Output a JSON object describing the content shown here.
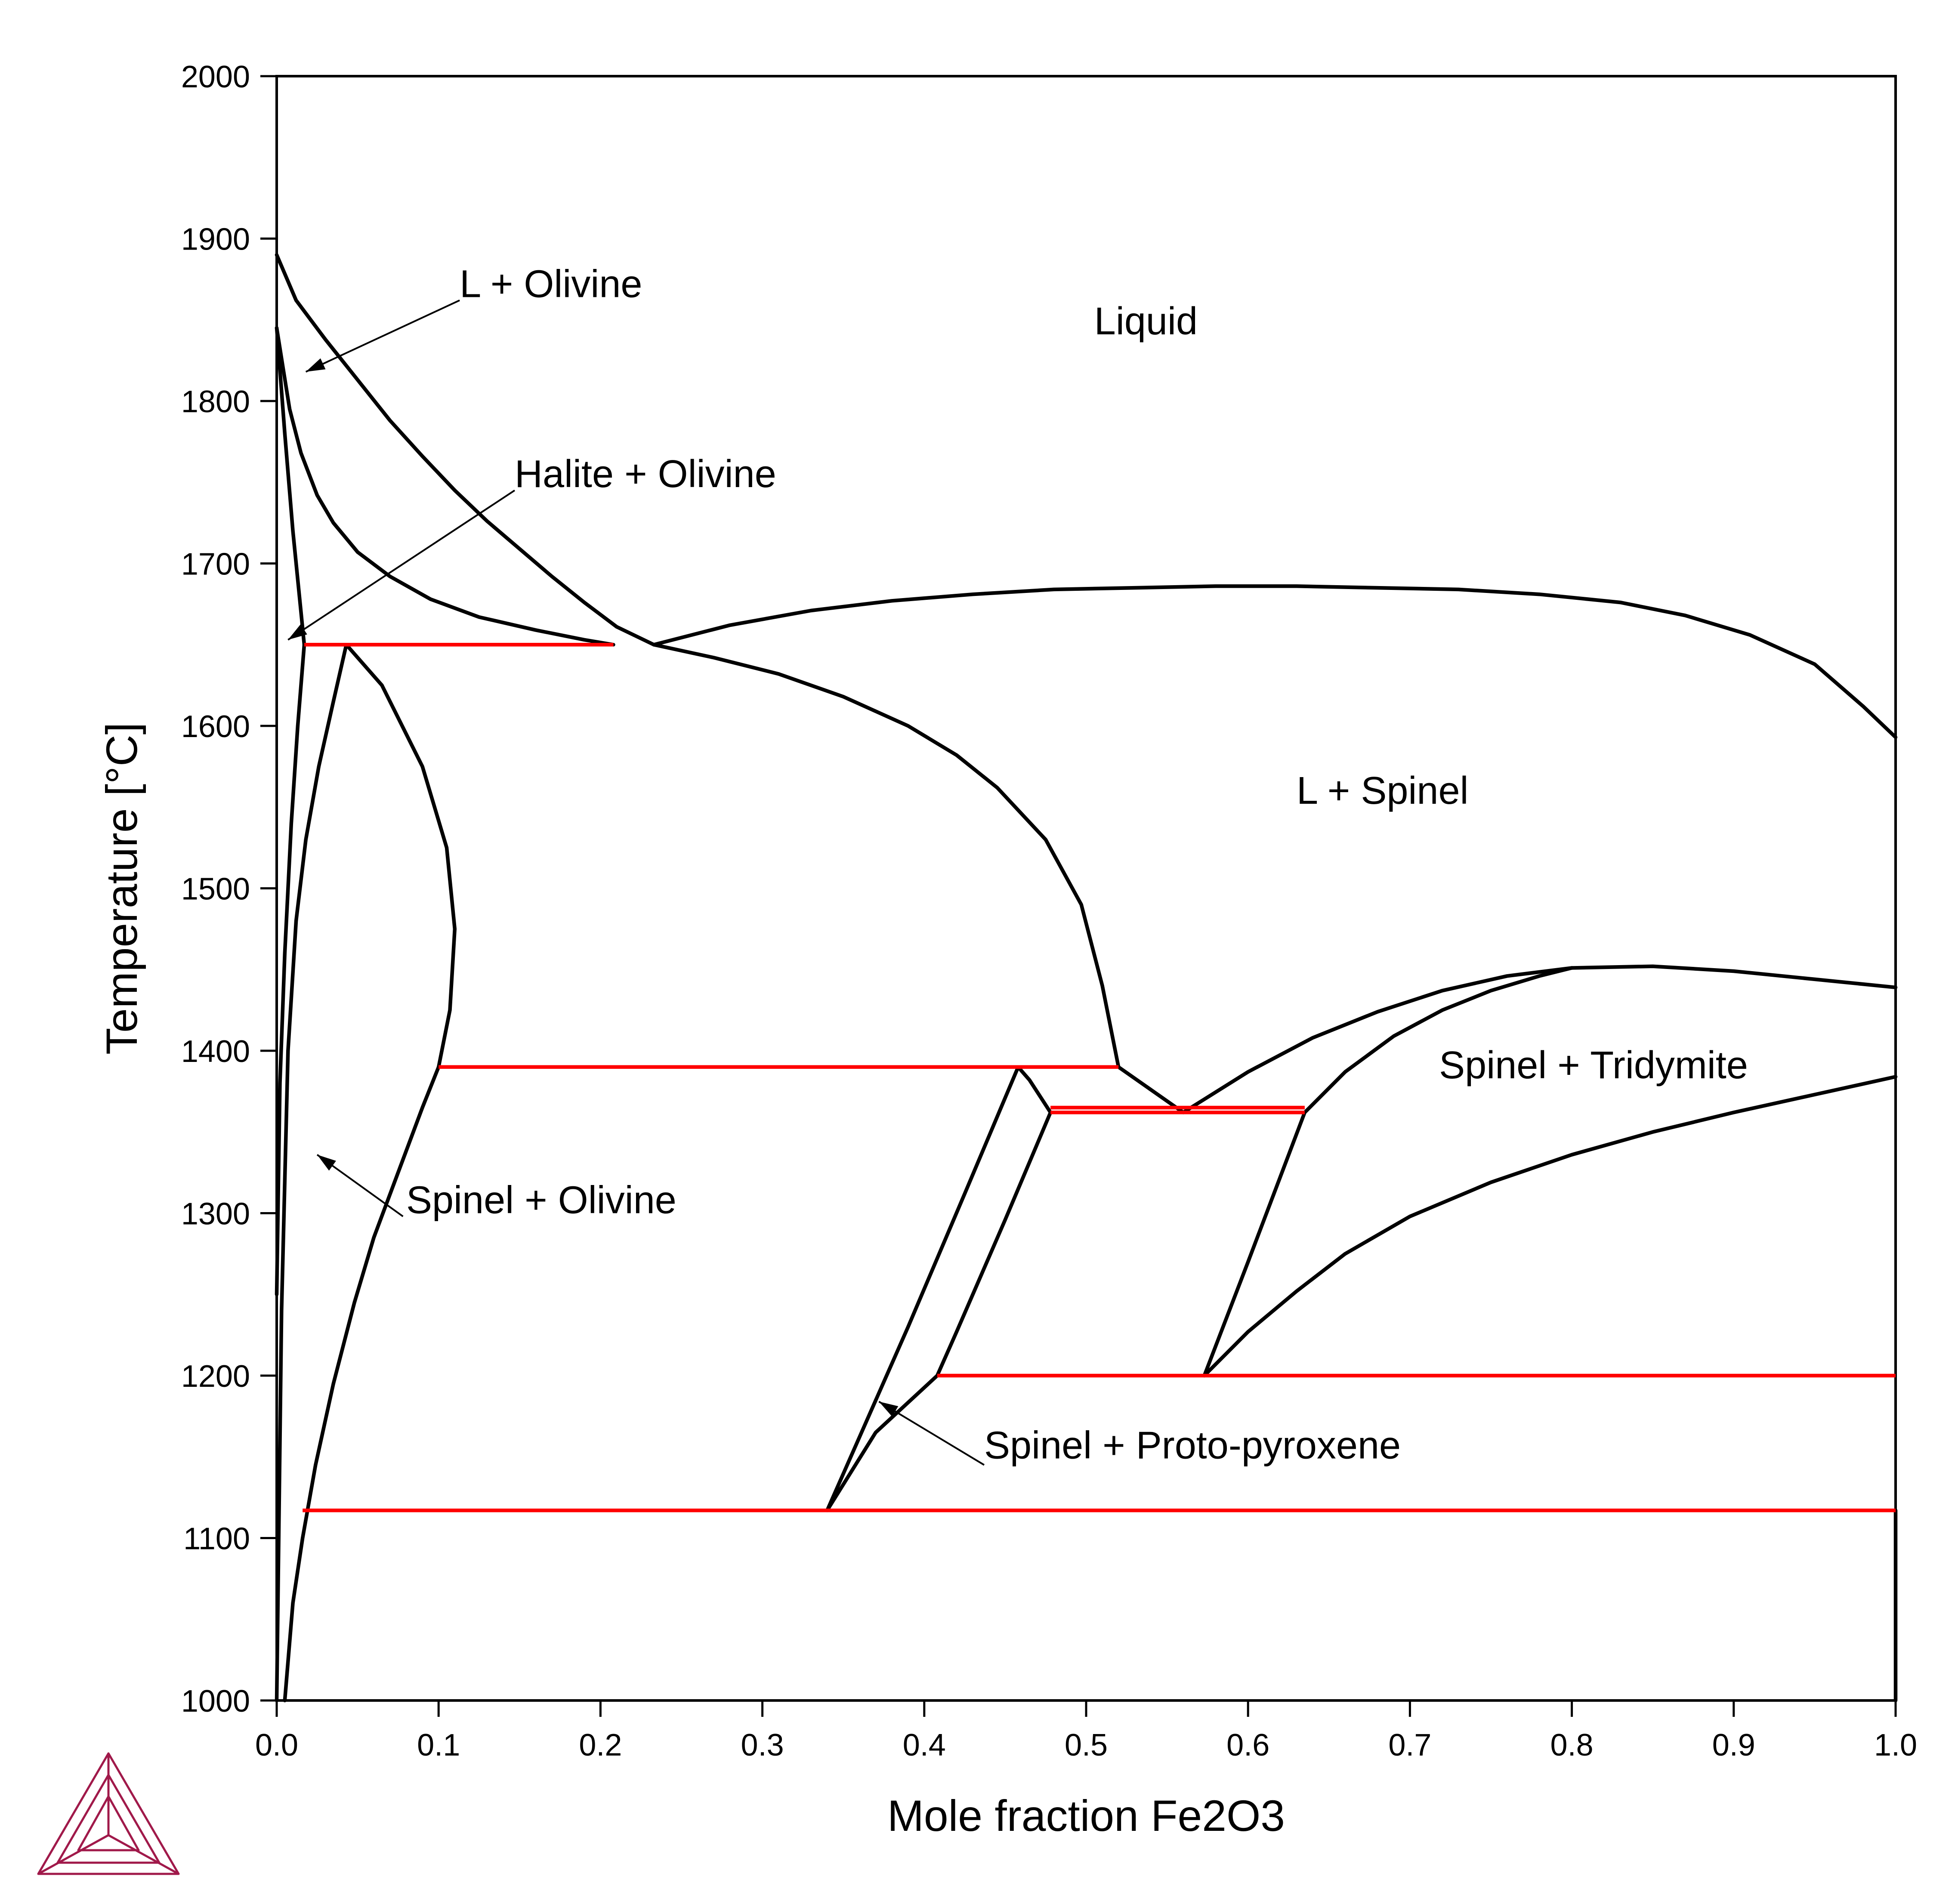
{
  "chart_data": {
    "type": "line",
    "xlabel": "Mole fraction Fe2O3",
    "ylabel": "Temperature [°C]",
    "xlim": [
      0.0,
      1.0
    ],
    "ylim": [
      1000,
      2000
    ],
    "xticks": [
      "0.0",
      "0.1",
      "0.2",
      "0.3",
      "0.4",
      "0.5",
      "0.6",
      "0.7",
      "0.8",
      "0.9",
      "1.0"
    ],
    "yticks": [
      "1000",
      "1100",
      "1200",
      "1300",
      "1400",
      "1500",
      "1600",
      "1700",
      "1800",
      "1900",
      "2000"
    ],
    "grid": false,
    "colors": {
      "boundary": "#000000",
      "invariant": "#ff0000",
      "logo": "#a0194a"
    },
    "phase_boundaries": [
      {
        "x": [
          0.0,
          0.012,
          0.03,
          0.05,
          0.07,
          0.09,
          0.11,
          0.13,
          0.15,
          0.17,
          0.19,
          0.21,
          0.233
        ],
        "y": [
          1890,
          1862,
          1838,
          1813,
          1788,
          1766,
          1745,
          1726,
          1709,
          1692,
          1676,
          1661,
          1650
        ]
      },
      {
        "x": [
          0.0,
          0.004,
          0.008,
          0.015,
          0.025,
          0.035,
          0.05,
          0.07,
          0.095,
          0.125,
          0.16,
          0.19,
          0.208
        ],
        "y": [
          1845,
          1820,
          1795,
          1768,
          1742,
          1725,
          1707,
          1692,
          1678,
          1667,
          1659,
          1653,
          1650
        ]
      },
      {
        "x": [
          0.0,
          0.005,
          0.01,
          0.014,
          0.017
        ],
        "y": [
          1845,
          1780,
          1720,
          1680,
          1650
        ]
      },
      {
        "x": [
          0.0,
          0.002,
          0.005,
          0.009,
          0.013,
          0.017
        ],
        "y": [
          1250,
          1380,
          1460,
          1540,
          1600,
          1650
        ]
      },
      {
        "x": [
          0.0,
          0.003,
          0.007,
          0.012,
          0.018,
          0.026,
          0.035,
          0.043
        ],
        "y": [
          1000,
          1240,
          1400,
          1480,
          1530,
          1575,
          1615,
          1650
        ]
      },
      {
        "x": [
          0.043,
          0.065,
          0.09,
          0.105,
          0.11,
          0.107,
          0.1
        ],
        "y": [
          1650,
          1625,
          1575,
          1525,
          1475,
          1425,
          1390
        ]
      },
      {
        "x": [
          0.1,
          0.09,
          0.075,
          0.06,
          0.048,
          0.035,
          0.024,
          0.016,
          0.01,
          0.005
        ],
        "y": [
          1390,
          1365,
          1325,
          1285,
          1245,
          1195,
          1145,
          1100,
          1060,
          1000
        ]
      },
      {
        "x": [
          0.233,
          0.27,
          0.31,
          0.35,
          0.39,
          0.42,
          0.445,
          0.475,
          0.497,
          0.51,
          0.52
        ],
        "y": [
          1650,
          1642,
          1632,
          1618,
          1600,
          1582,
          1562,
          1530,
          1490,
          1440,
          1390
        ]
      },
      {
        "x": [
          0.233,
          0.28,
          0.33,
          0.38,
          0.43,
          0.48,
          0.53,
          0.58,
          0.63,
          0.68,
          0.73,
          0.78,
          0.83,
          0.87,
          0.91,
          0.95,
          0.98,
          1.0
        ],
        "y": [
          1650,
          1662,
          1671,
          1677,
          1681,
          1684,
          1685,
          1686,
          1686,
          1685,
          1684,
          1681,
          1676,
          1668,
          1656,
          1638,
          1612,
          1593
        ]
      },
      {
        "x": [
          0.52,
          0.56
        ],
        "y": [
          1390,
          1362
        ]
      },
      {
        "x": [
          0.56,
          0.6,
          0.64,
          0.68,
          0.72,
          0.76,
          0.8
        ],
        "y": [
          1362,
          1387,
          1408,
          1424,
          1437,
          1446,
          1451
        ]
      },
      {
        "x": [
          0.8,
          0.85,
          0.9,
          0.95,
          1.0
        ],
        "y": [
          1451,
          1452,
          1449,
          1444,
          1439
        ]
      },
      {
        "x": [
          0.635,
          0.66,
          0.69,
          0.72,
          0.75,
          0.78,
          0.8
        ],
        "y": [
          1362,
          1387,
          1409,
          1425,
          1437,
          1446,
          1451
        ]
      },
      {
        "x": [
          0.573,
          0.6,
          0.635
        ],
        "y": [
          1200,
          1270,
          1362
        ]
      },
      {
        "x": [
          0.573,
          0.6,
          0.63,
          0.66,
          0.7,
          0.75,
          0.8,
          0.85,
          0.9,
          0.95,
          1.0
        ],
        "y": [
          1200,
          1227,
          1252,
          1275,
          1298,
          1319,
          1336,
          1350,
          1362,
          1373,
          1384
        ]
      },
      {
        "x": [
          0.34,
          0.39,
          0.425,
          0.458,
          0.465,
          0.478
        ],
        "y": [
          1117,
          1230,
          1312,
          1390,
          1382,
          1362
        ]
      },
      {
        "x": [
          0.478,
          0.45,
          0.42,
          0.408
        ],
        "y": [
          1362,
          1296,
          1227,
          1200
        ]
      },
      {
        "x": [
          0.408,
          0.37,
          0.34
        ],
        "y": [
          1200,
          1165,
          1117
        ]
      },
      {
        "x": [
          1.0,
          1.0
        ],
        "y": [
          1000,
          1117
        ]
      }
    ],
    "invariant_lines": [
      {
        "x": [
          0.017,
          0.208
        ],
        "y": [
          1650,
          1650
        ]
      },
      {
        "x": [
          0.1,
          0.52
        ],
        "y": [
          1390,
          1390
        ]
      },
      {
        "x": [
          0.478,
          0.635
        ],
        "y": [
          1362,
          1362
        ]
      },
      {
        "x": [
          0.478,
          0.635
        ],
        "y": [
          1365,
          1365
        ]
      },
      {
        "x": [
          0.408,
          1.0
        ],
        "y": [
          1200,
          1200
        ]
      },
      {
        "x": [
          0.016,
          1.0
        ],
        "y": [
          1117,
          1117
        ]
      }
    ],
    "annotations": [
      {
        "text": "L + Olivine",
        "x": 0.113,
        "y": 1864,
        "arrow_from": [
          0.113,
          1862
        ],
        "arrow_to": [
          0.018,
          1818
        ]
      },
      {
        "text": "Halite + Olivine",
        "x": 0.147,
        "y": 1747,
        "arrow_from": [
          0.147,
          1745
        ],
        "arrow_to": [
          0.007,
          1653
        ]
      },
      {
        "text": "Liquid",
        "x": 0.505,
        "y": 1841
      },
      {
        "text": "L + Spinel",
        "x": 0.63,
        "y": 1552
      },
      {
        "text": "Spinel + Tridymite",
        "x": 0.718,
        "y": 1383
      },
      {
        "text": "Spinel + Olivine",
        "x": 0.08,
        "y": 1300,
        "arrow_from": [
          0.078,
          1298
        ],
        "arrow_to": [
          0.025,
          1336
        ]
      },
      {
        "text": "Spinel + Proto-pyroxene",
        "x": 0.437,
        "y": 1149,
        "arrow_from": [
          0.437,
          1145
        ],
        "arrow_to": [
          0.372,
          1184
        ]
      }
    ]
  }
}
